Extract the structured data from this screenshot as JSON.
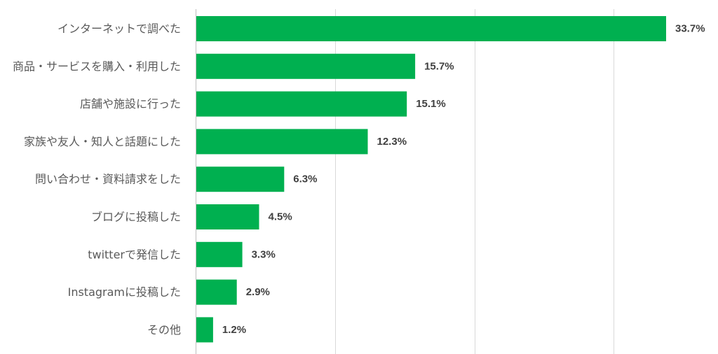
{
  "chart_data": {
    "type": "bar",
    "orientation": "horizontal",
    "categories": [
      "インターネットで調べた",
      "商品・サービスを購入・利用した",
      "店舗や施設に行った",
      "家族や友人・知人と話題にした",
      "問い合わせ・資料請求をした",
      "ブログに投稿した",
      "twitterで発信した",
      "Instagramに投稿した",
      "その他"
    ],
    "values": [
      33.7,
      15.7,
      15.1,
      12.3,
      6.3,
      4.5,
      3.3,
      2.9,
      1.2
    ],
    "value_labels": [
      "33.7%",
      "15.7%",
      "15.1%",
      "12.3%",
      "6.3%",
      "4.5%",
      "3.3%",
      "2.9%",
      "1.2%"
    ],
    "xlim": [
      0,
      40
    ],
    "xgrid": [
      10,
      20,
      30
    ],
    "grid": true,
    "legend": "none",
    "bar_color": "#00b050"
  }
}
